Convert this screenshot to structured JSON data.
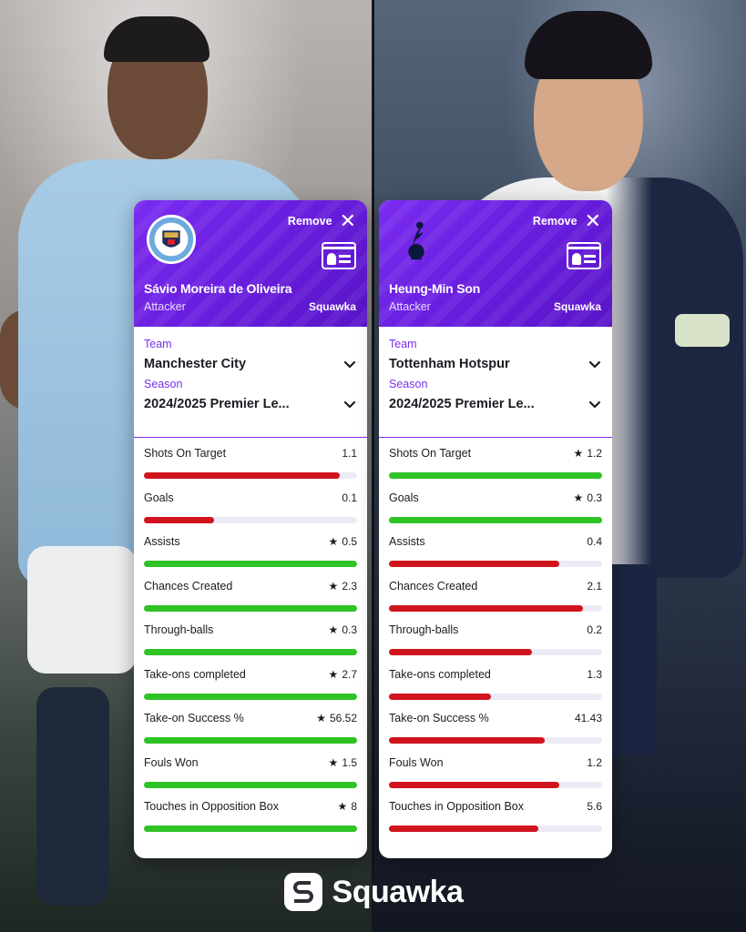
{
  "players": [
    {
      "name": "Sávio Moreira de Oliveira",
      "role": "Attacker",
      "brand": "Squawka",
      "remove_label": "Remove",
      "crest": "manchester-city-crest",
      "team_label": "Team",
      "team": "Manchester City",
      "season_label": "Season",
      "season": "2024/2025 Premier Le...",
      "stats": [
        {
          "label": "Shots On Target",
          "value": "1.1",
          "star": false,
          "bar": 0.92,
          "color": "red"
        },
        {
          "label": "Goals",
          "value": "0.1",
          "star": false,
          "bar": 0.33,
          "color": "red"
        },
        {
          "label": "Assists",
          "value": "0.5",
          "star": true,
          "bar": 1.0,
          "color": "green"
        },
        {
          "label": "Chances Created",
          "value": "2.3",
          "star": true,
          "bar": 1.0,
          "color": "green"
        },
        {
          "label": "Through-balls",
          "value": "0.3",
          "star": true,
          "bar": 1.0,
          "color": "green"
        },
        {
          "label": "Take-ons completed",
          "value": "2.7",
          "star": true,
          "bar": 1.0,
          "color": "green"
        },
        {
          "label": "Take-on Success %",
          "value": "56.52",
          "star": true,
          "bar": 1.0,
          "color": "green"
        },
        {
          "label": "Fouls Won",
          "value": "1.5",
          "star": true,
          "bar": 1.0,
          "color": "green"
        },
        {
          "label": "Touches in Opposition Box",
          "value": "8",
          "star": true,
          "bar": 1.0,
          "color": "green"
        }
      ]
    },
    {
      "name": "Heung-Min Son",
      "role": "Attacker",
      "brand": "Squawka",
      "remove_label": "Remove",
      "crest": "tottenham-hotspur-crest",
      "team_label": "Team",
      "team": "Tottenham Hotspur",
      "season_label": "Season",
      "season": "2024/2025 Premier Le...",
      "stats": [
        {
          "label": "Shots On Target",
          "value": "1.2",
          "star": true,
          "bar": 1.0,
          "color": "green"
        },
        {
          "label": "Goals",
          "value": "0.3",
          "star": true,
          "bar": 1.0,
          "color": "green"
        },
        {
          "label": "Assists",
          "value": "0.4",
          "star": false,
          "bar": 0.8,
          "color": "red"
        },
        {
          "label": "Chances Created",
          "value": "2.1",
          "star": false,
          "bar": 0.91,
          "color": "red"
        },
        {
          "label": "Through-balls",
          "value": "0.2",
          "star": false,
          "bar": 0.67,
          "color": "red"
        },
        {
          "label": "Take-ons completed",
          "value": "1.3",
          "star": false,
          "bar": 0.48,
          "color": "red"
        },
        {
          "label": "Take-on Success %",
          "value": "41.43",
          "star": false,
          "bar": 0.73,
          "color": "red"
        },
        {
          "label": "Fouls Won",
          "value": "1.2",
          "star": false,
          "bar": 0.8,
          "color": "red"
        },
        {
          "label": "Touches in Opposition Box",
          "value": "5.6",
          "star": false,
          "bar": 0.7,
          "color": "red"
        }
      ]
    }
  ],
  "footer": {
    "brand": "Squawka"
  },
  "colors": {
    "accent": "#7b2ff0",
    "better": "#2fc325",
    "worse": "#d0141e"
  }
}
